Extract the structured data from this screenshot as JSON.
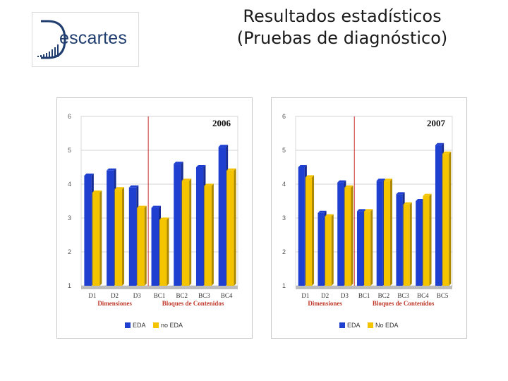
{
  "header": {
    "logo_text": "escartes",
    "title_line1": "Resultados estadísticos",
    "title_line2": "(Pruebas de diagnóstico)"
  },
  "colors": {
    "eda": "#1f3fd0",
    "no_eda": "#f5c400",
    "divider": "#cc3333",
    "group_label": "#c0392b",
    "logo": "#1f3d6e"
  },
  "chart_data": [
    {
      "type": "bar",
      "title": "2006",
      "categories": [
        "D1",
        "D2",
        "D3",
        "BC1",
        "BC2",
        "BC3",
        "BC4"
      ],
      "series": [
        {
          "name": "EDA",
          "values": [
            4.25,
            4.4,
            3.9,
            3.3,
            4.6,
            4.5,
            5.1
          ]
        },
        {
          "name": "no EDA",
          "values": [
            3.75,
            3.85,
            3.3,
            2.95,
            4.1,
            3.95,
            4.4
          ]
        }
      ],
      "ylim": [
        1,
        6
      ],
      "yticks": [
        "1",
        "2",
        "3",
        "4",
        "5",
        "6"
      ],
      "groups": [
        {
          "label": "Dimensiones",
          "count": 3
        },
        {
          "label": "Bloques de Contenidos",
          "count": 4
        }
      ],
      "legend": [
        "EDA",
        "no EDA"
      ],
      "legend_position": "bottom",
      "grid": true
    },
    {
      "type": "bar",
      "title": "2007",
      "categories": [
        "D1",
        "D2",
        "D3",
        "BC1",
        "BC2",
        "BC3",
        "BC4",
        "BC5"
      ],
      "series": [
        {
          "name": "EDA",
          "values": [
            4.5,
            3.15,
            4.05,
            3.2,
            4.1,
            3.7,
            3.5,
            5.15
          ]
        },
        {
          "name": "No EDA",
          "values": [
            4.2,
            3.05,
            3.9,
            3.2,
            4.1,
            3.4,
            3.65,
            4.9
          ]
        }
      ],
      "ylim": [
        1,
        6
      ],
      "yticks": [
        "1",
        "2",
        "3",
        "4",
        "5",
        "6"
      ],
      "groups": [
        {
          "label": "Dimensiones",
          "count": 3
        },
        {
          "label": "Bloques de Contenidos",
          "count": 5
        }
      ],
      "legend": [
        "EDA",
        "No EDA"
      ],
      "legend_position": "bottom",
      "grid": true
    }
  ]
}
